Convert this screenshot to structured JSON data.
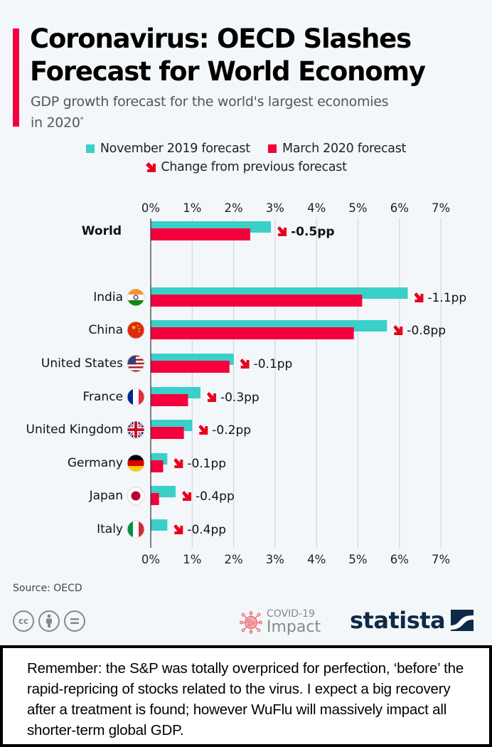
{
  "header": {
    "title": "Coronavirus: OECD Slashes Forecast for World Economy",
    "subtitle": "GDP growth forecast for the world's largest economies in 2020",
    "subtitle_mark": "*"
  },
  "legend": {
    "items": [
      {
        "label": "November 2019 forecast",
        "color": "#3acfc9"
      },
      {
        "label": "March 2020 forecast",
        "color": "#f5003d"
      }
    ],
    "change_label": "Change from previous forecast",
    "change_icon": "down-right-arrow-icon",
    "change_color": "#e8001f"
  },
  "chart_data": {
    "type": "bar",
    "orientation": "horizontal",
    "title": "Coronavirus: OECD Slashes Forecast for World Economy",
    "subtitle": "GDP growth forecast for the world's largest economies in 2020*",
    "xlabel": "",
    "ylabel": "",
    "xlim": [
      0,
      7
    ],
    "x_ticks": [
      "0%",
      "1%",
      "2%",
      "3%",
      "4%",
      "5%",
      "6%",
      "7%"
    ],
    "grid": true,
    "legend_position": "top-center",
    "categories": [
      "World",
      "India",
      "China",
      "United States",
      "France",
      "United Kingdom",
      "Germany",
      "Japan",
      "Italy"
    ],
    "flags": [
      null,
      "india-flag-icon",
      "china-flag-icon",
      "us-flag-icon",
      "france-flag-icon",
      "uk-flag-icon",
      "germany-flag-icon",
      "japan-flag-icon",
      "italy-flag-icon"
    ],
    "series": [
      {
        "name": "November 2019 forecast",
        "color": "#3acfc9",
        "values": [
          2.9,
          6.2,
          5.7,
          2.0,
          1.2,
          1.0,
          0.4,
          0.6,
          0.4
        ]
      },
      {
        "name": "March 2020 forecast",
        "color": "#f5003d",
        "values": [
          2.4,
          5.1,
          4.9,
          1.9,
          0.9,
          0.8,
          0.3,
          0.2,
          0.0
        ]
      }
    ],
    "change_labels": [
      "-0.5pp",
      "-1.1pp",
      "-0.8pp",
      "-0.1pp",
      "-0.3pp",
      "-0.2pp",
      "-0.1pp",
      "-0.4pp",
      "-0.4pp"
    ],
    "unit": "%"
  },
  "footer": {
    "source": "Source: OECD",
    "license_icons": [
      "cc",
      "by",
      "nd"
    ],
    "covid_line1": "COVID-19",
    "covid_line2": "Impact",
    "brand": "statista"
  },
  "note": {
    "text": "Remember: the S&P was totally overpriced for perfection, ‘before’ the rapid-repricing of stocks related to the virus. I expect a big recovery after a treatment is found; however WuFlu will massively impact all shorter-term global GDP."
  }
}
